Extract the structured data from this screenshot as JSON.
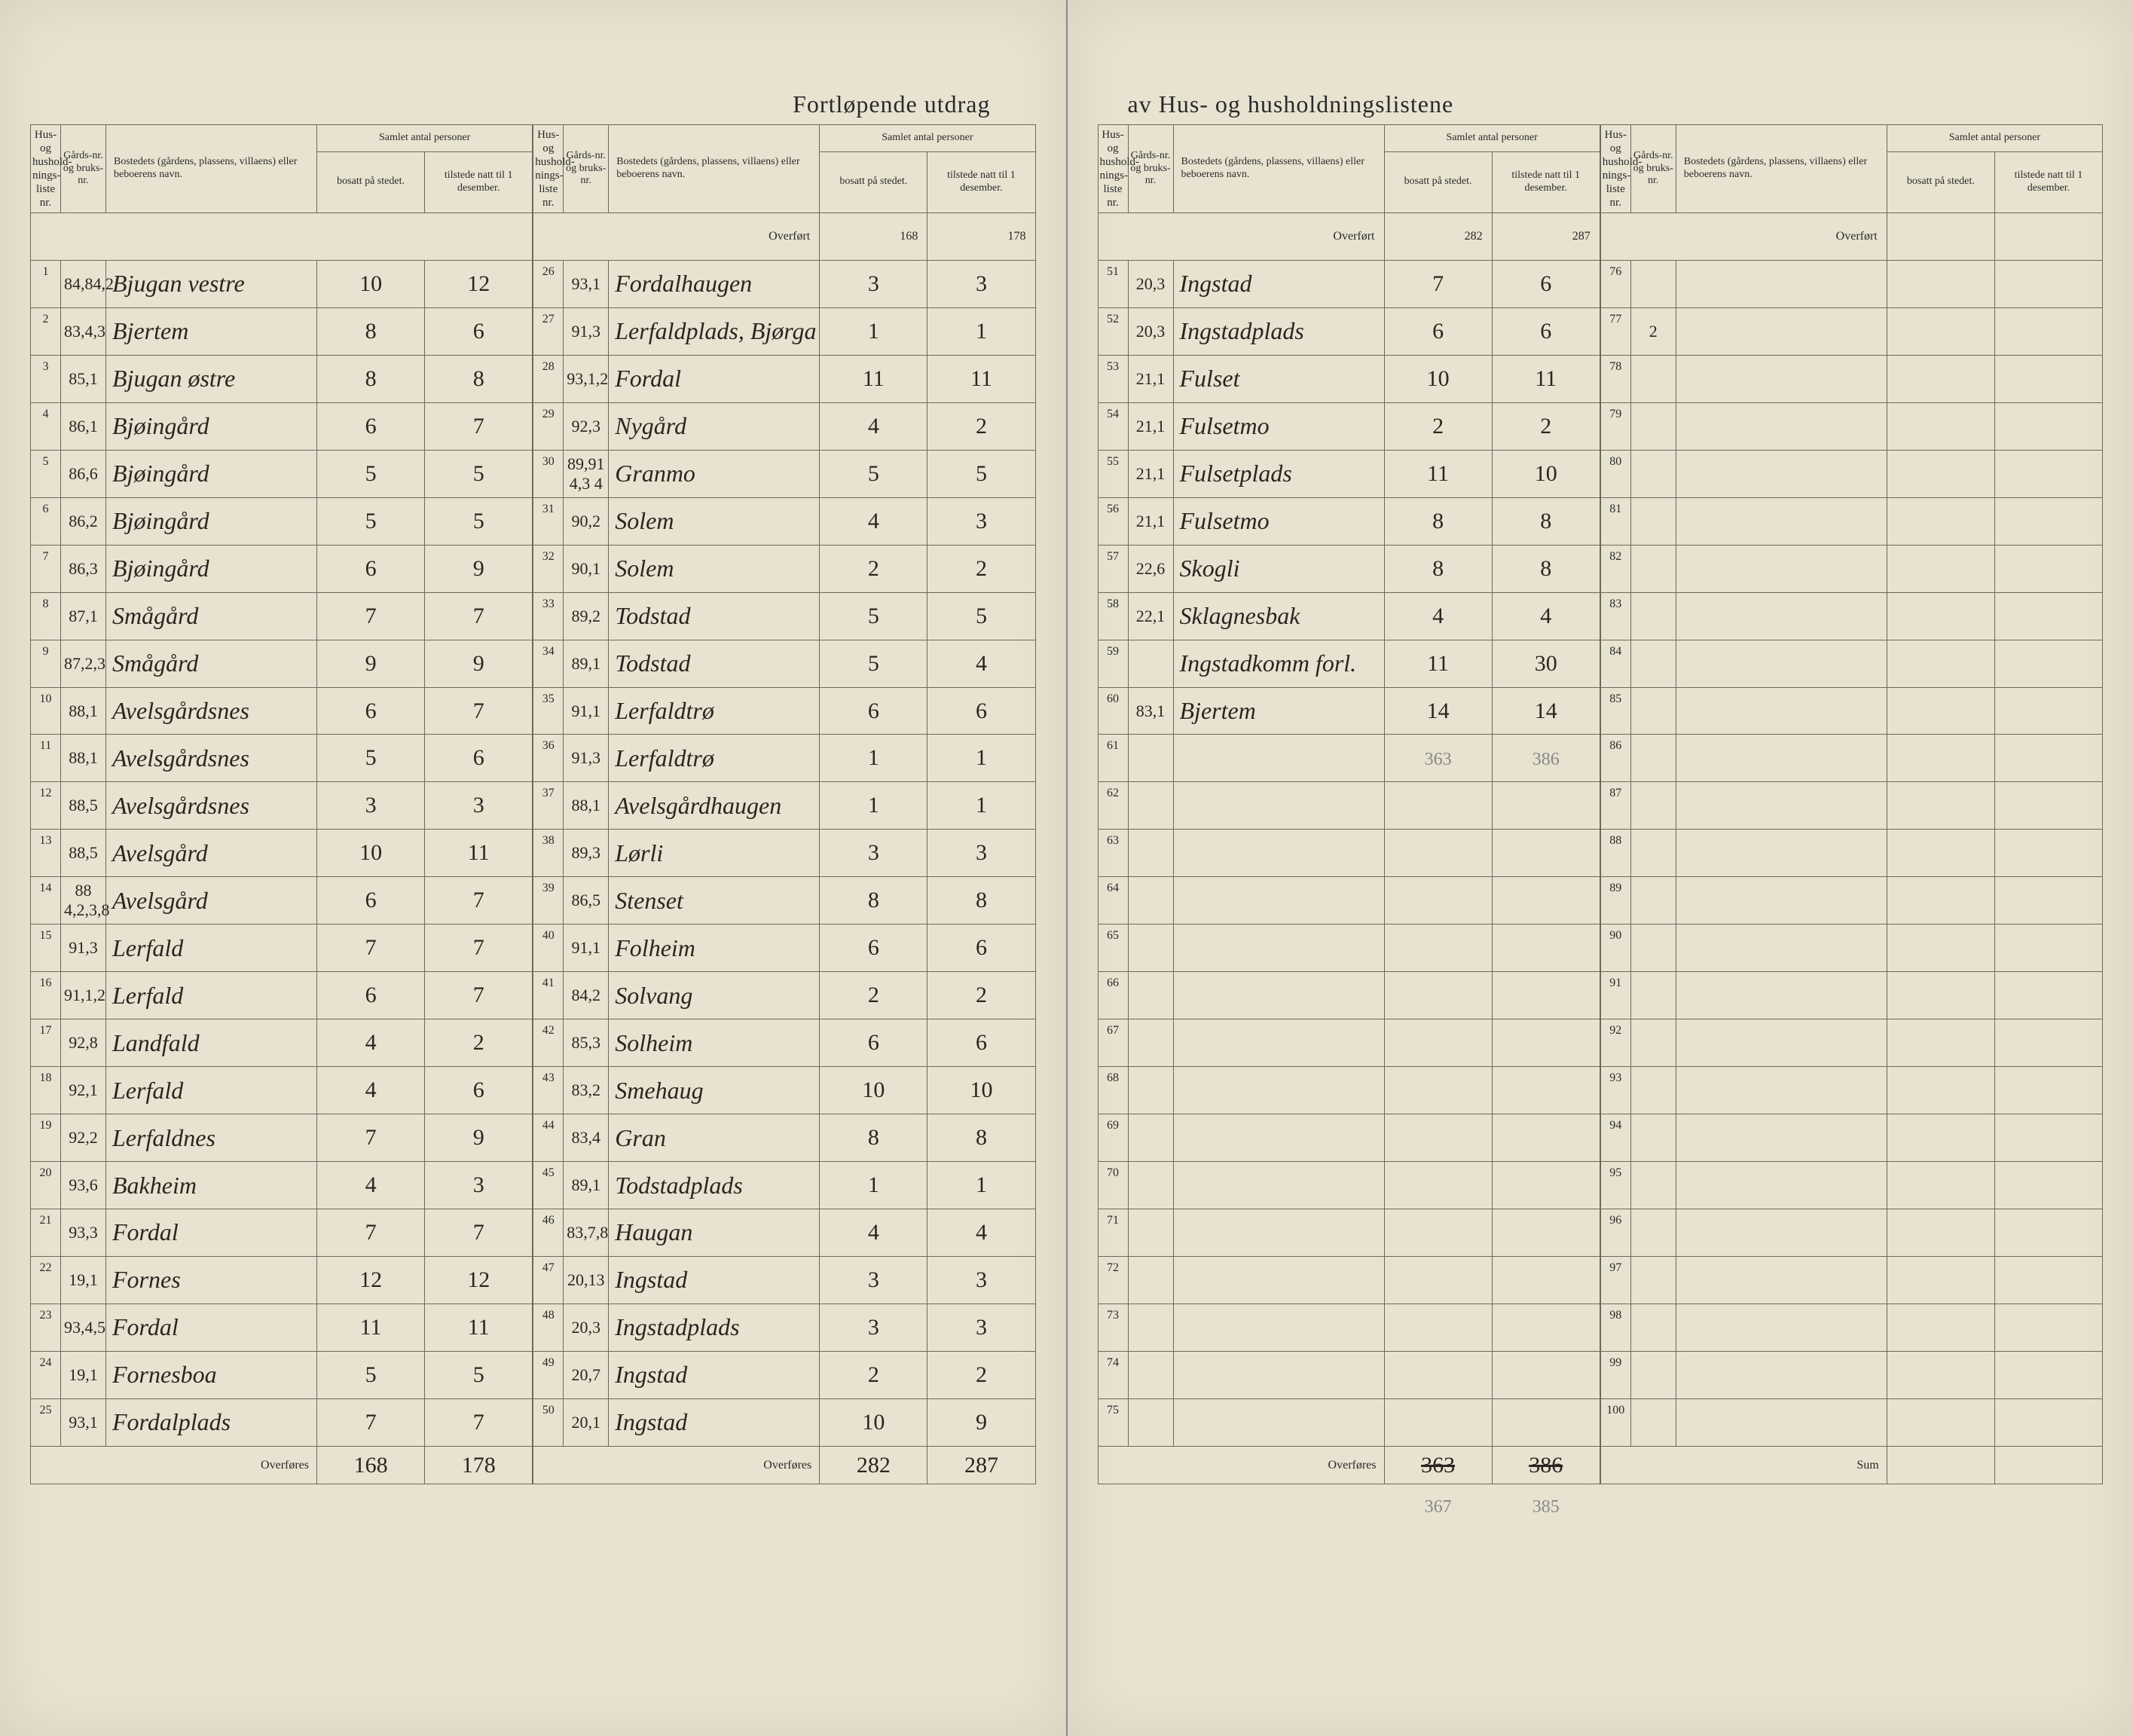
{
  "title_left": "Fortløpende utdrag",
  "title_right": "av Hus- og husholdningslistene",
  "headers": {
    "nr": "Hus- og hushold-nings-liste nr.",
    "gard": "Gårds-nr. og bruks-nr.",
    "bosted": "Bostedets (gårdens, plassens, villaens) eller beboerens navn.",
    "samlet": "Samlet antal personer",
    "bosatt": "bosatt på stedet.",
    "tilstede": "tilstede natt til 1 desember."
  },
  "overfort_label": "Overført",
  "overfores_label": "Overføres",
  "sum_label": "Sum",
  "col1": {
    "rows": [
      {
        "nr": "1",
        "gard": "84,84,2",
        "name": "Bjugan vestre",
        "b": "10",
        "t": "12"
      },
      {
        "nr": "2",
        "gard": "83,4,3",
        "name": "Bjertem",
        "b": "8",
        "t": "6"
      },
      {
        "nr": "3",
        "gard": "85,1",
        "name": "Bjugan østre",
        "b": "8",
        "t": "8"
      },
      {
        "nr": "4",
        "gard": "86,1",
        "name": "Bjøingård",
        "b": "6",
        "t": "7"
      },
      {
        "nr": "5",
        "gard": "86,6",
        "name": "Bjøingård",
        "b": "5",
        "t": "5"
      },
      {
        "nr": "6",
        "gard": "86,2",
        "name": "Bjøingård",
        "b": "5",
        "t": "5"
      },
      {
        "nr": "7",
        "gard": "86,3",
        "name": "Bjøingård",
        "b": "6",
        "t": "9"
      },
      {
        "nr": "8",
        "gard": "87,1",
        "name": "Smågård",
        "b": "7",
        "t": "7"
      },
      {
        "nr": "9",
        "gard": "87,2,3",
        "name": "Smågård",
        "b": "9",
        "t": "9"
      },
      {
        "nr": "10",
        "gard": "88,1",
        "name": "Avelsgårdsnes",
        "b": "6",
        "t": "7"
      },
      {
        "nr": "11",
        "gard": "88,1",
        "name": "Avelsgårdsnes",
        "b": "5",
        "t": "6"
      },
      {
        "nr": "12",
        "gard": "88,5",
        "name": "Avelsgårdsnes",
        "b": "3",
        "t": "3"
      },
      {
        "nr": "13",
        "gard": "88,5",
        "name": "Avelsgård",
        "b": "10",
        "t": "11"
      },
      {
        "nr": "14",
        "gard": "88 4,2,3,8",
        "name": "Avelsgård",
        "b": "6",
        "t": "7"
      },
      {
        "nr": "15",
        "gard": "91,3",
        "name": "Lerfald",
        "b": "7",
        "t": "7"
      },
      {
        "nr": "16",
        "gard": "91,1,2",
        "name": "Lerfald",
        "b": "6",
        "t": "7"
      },
      {
        "nr": "17",
        "gard": "92,8",
        "name": "Landfald",
        "b": "4",
        "t": "2"
      },
      {
        "nr": "18",
        "gard": "92,1",
        "name": "Lerfald",
        "b": "4",
        "t": "6"
      },
      {
        "nr": "19",
        "gard": "92,2",
        "name": "Lerfaldnes",
        "b": "7",
        "t": "9"
      },
      {
        "nr": "20",
        "gard": "93,6",
        "name": "Bakheim",
        "b": "4",
        "t": "3"
      },
      {
        "nr": "21",
        "gard": "93,3",
        "name": "Fordal",
        "b": "7",
        "t": "7"
      },
      {
        "nr": "22",
        "gard": "19,1",
        "name": "Fornes",
        "b": "12",
        "t": "12"
      },
      {
        "nr": "23",
        "gard": "93,4,5",
        "name": "Fordal",
        "b": "11",
        "t": "11"
      },
      {
        "nr": "24",
        "gard": "19,1",
        "name": "Fornesboa",
        "b": "5",
        "t": "5"
      },
      {
        "nr": "25",
        "gard": "93,1",
        "name": "Fordalplads",
        "b": "7",
        "t": "7"
      }
    ],
    "overfores_b": "168",
    "overfores_t": "178"
  },
  "col2": {
    "overfort_b": "168",
    "overfort_t": "178",
    "rows": [
      {
        "nr": "26",
        "gard": "93,1",
        "name": "Fordalhaugen",
        "b": "3",
        "t": "3"
      },
      {
        "nr": "27",
        "gard": "91,3",
        "name": "Lerfaldplads, Bjørga",
        "b": "1",
        "t": "1"
      },
      {
        "nr": "28",
        "gard": "93,1,2",
        "name": "Fordal",
        "b": "11",
        "t": "11"
      },
      {
        "nr": "29",
        "gard": "92,3",
        "name": "Nygård",
        "b": "4",
        "t": "2"
      },
      {
        "nr": "30",
        "gard": "89,91 4,3 4",
        "name": "Granmo",
        "b": "5",
        "t": "5"
      },
      {
        "nr": "31",
        "gard": "90,2",
        "name": "Solem",
        "b": "4",
        "t": "3"
      },
      {
        "nr": "32",
        "gard": "90,1",
        "name": "Solem",
        "b": "2",
        "t": "2"
      },
      {
        "nr": "33",
        "gard": "89,2",
        "name": "Todstad",
        "b": "5",
        "t": "5"
      },
      {
        "nr": "34",
        "gard": "89,1",
        "name": "Todstad",
        "b": "5",
        "t": "4"
      },
      {
        "nr": "35",
        "gard": "91,1",
        "name": "Lerfaldtrø",
        "b": "6",
        "t": "6"
      },
      {
        "nr": "36",
        "gard": "91,3",
        "name": "Lerfaldtrø",
        "b": "1",
        "t": "1"
      },
      {
        "nr": "37",
        "gard": "88,1",
        "name": "Avelsgårdhaugen",
        "b": "1",
        "t": "1"
      },
      {
        "nr": "38",
        "gard": "89,3",
        "name": "Lørli",
        "b": "3",
        "t": "3"
      },
      {
        "nr": "39",
        "gard": "86,5",
        "name": "Stenset",
        "b": "8",
        "t": "8"
      },
      {
        "nr": "40",
        "gard": "91,1",
        "name": "Folheim",
        "b": "6",
        "t": "6"
      },
      {
        "nr": "41",
        "gard": "84,2",
        "name": "Solvang",
        "b": "2",
        "t": "2"
      },
      {
        "nr": "42",
        "gard": "85,3",
        "name": "Solheim",
        "b": "6",
        "t": "6"
      },
      {
        "nr": "43",
        "gard": "83,2",
        "name": "Smehaug",
        "b": "10",
        "t": "10"
      },
      {
        "nr": "44",
        "gard": "83,4",
        "name": "Gran",
        "b": "8",
        "t": "8"
      },
      {
        "nr": "45",
        "gard": "89,1",
        "name": "Todstadplads",
        "b": "1",
        "t": "1"
      },
      {
        "nr": "46",
        "gard": "83,7,8",
        "name": "Haugan",
        "b": "4",
        "t": "4"
      },
      {
        "nr": "47",
        "gard": "20,13",
        "name": "Ingstad",
        "b": "3",
        "t": "3"
      },
      {
        "nr": "48",
        "gard": "20,3",
        "name": "Ingstadplads",
        "b": "3",
        "t": "3"
      },
      {
        "nr": "49",
        "gard": "20,7",
        "name": "Ingstad",
        "b": "2",
        "t": "2"
      },
      {
        "nr": "50",
        "gard": "20,1",
        "name": "Ingstad",
        "b": "10",
        "t": "9"
      }
    ],
    "overfores_b": "282",
    "overfores_t": "287"
  },
  "col3": {
    "overfort_b": "282",
    "overfort_t": "287",
    "rows": [
      {
        "nr": "51",
        "gard": "20,3",
        "name": "Ingstad",
        "b": "7",
        "t": "6"
      },
      {
        "nr": "52",
        "gard": "20,3",
        "name": "Ingstadplads",
        "b": "6",
        "t": "6"
      },
      {
        "nr": "53",
        "gard": "21,1",
        "name": "Fulset",
        "b": "10",
        "t": "11"
      },
      {
        "nr": "54",
        "gard": "21,1",
        "name": "Fulsetmo",
        "b": "2",
        "t": "2"
      },
      {
        "nr": "55",
        "gard": "21,1",
        "name": "Fulsetplads",
        "b": "11",
        "t": "10"
      },
      {
        "nr": "56",
        "gard": "21,1",
        "name": "Fulsetmo",
        "b": "8",
        "t": "8"
      },
      {
        "nr": "57",
        "gard": "22,6",
        "name": "Skogli",
        "b": "8",
        "t": "8"
      },
      {
        "nr": "58",
        "gard": "22,1",
        "name": "Sklagnesbak",
        "b": "4",
        "t": "4"
      },
      {
        "nr": "59",
        "gard": "",
        "name": "Ingstadkomm forl.",
        "b": "11",
        "t": "30"
      },
      {
        "nr": "60",
        "gard": "83,1",
        "name": "Bjertem",
        "b": "14",
        "t": "14"
      },
      {
        "nr": "61",
        "gard": "",
        "name": "",
        "b": "",
        "t": ""
      },
      {
        "nr": "62",
        "gard": "",
        "name": "",
        "b": "",
        "t": ""
      },
      {
        "nr": "63",
        "gard": "",
        "name": "",
        "b": "",
        "t": ""
      },
      {
        "nr": "64",
        "gard": "",
        "name": "",
        "b": "",
        "t": ""
      },
      {
        "nr": "65",
        "gard": "",
        "name": "",
        "b": "",
        "t": ""
      },
      {
        "nr": "66",
        "gard": "",
        "name": "",
        "b": "",
        "t": ""
      },
      {
        "nr": "67",
        "gard": "",
        "name": "",
        "b": "",
        "t": ""
      },
      {
        "nr": "68",
        "gard": "",
        "name": "",
        "b": "",
        "t": ""
      },
      {
        "nr": "69",
        "gard": "",
        "name": "",
        "b": "",
        "t": ""
      },
      {
        "nr": "70",
        "gard": "",
        "name": "",
        "b": "",
        "t": ""
      },
      {
        "nr": "71",
        "gard": "",
        "name": "",
        "b": "",
        "t": ""
      },
      {
        "nr": "72",
        "gard": "",
        "name": "",
        "b": "",
        "t": ""
      },
      {
        "nr": "73",
        "gard": "",
        "name": "",
        "b": "",
        "t": ""
      },
      {
        "nr": "74",
        "gard": "",
        "name": "",
        "b": "",
        "t": ""
      },
      {
        "nr": "75",
        "gard": "",
        "name": "",
        "b": "",
        "t": ""
      }
    ],
    "pencil_b": "363",
    "pencil_t": "386",
    "overfores_b": "363",
    "overfores_t": "386",
    "pencil2_b": "367",
    "pencil2_t": "385"
  },
  "col4": {
    "overfort_b": "",
    "overfort_t": "",
    "rows": [
      {
        "nr": "76",
        "gard": "",
        "name": "",
        "b": "",
        "t": ""
      },
      {
        "nr": "77",
        "gard": "2",
        "name": "",
        "b": "",
        "t": ""
      },
      {
        "nr": "78",
        "gard": "",
        "name": "",
        "b": "",
        "t": ""
      },
      {
        "nr": "79",
        "gard": "",
        "name": "",
        "b": "",
        "t": ""
      },
      {
        "nr": "80",
        "gard": "",
        "name": "",
        "b": "",
        "t": ""
      },
      {
        "nr": "81",
        "gard": "",
        "name": "",
        "b": "",
        "t": ""
      },
      {
        "nr": "82",
        "gard": "",
        "name": "",
        "b": "",
        "t": ""
      },
      {
        "nr": "83",
        "gard": "",
        "name": "",
        "b": "",
        "t": ""
      },
      {
        "nr": "84",
        "gard": "",
        "name": "",
        "b": "",
        "t": ""
      },
      {
        "nr": "85",
        "gard": "",
        "name": "",
        "b": "",
        "t": ""
      },
      {
        "nr": "86",
        "gard": "",
        "name": "",
        "b": "",
        "t": ""
      },
      {
        "nr": "87",
        "gard": "",
        "name": "",
        "b": "",
        "t": ""
      },
      {
        "nr": "88",
        "gard": "",
        "name": "",
        "b": "",
        "t": ""
      },
      {
        "nr": "89",
        "gard": "",
        "name": "",
        "b": "",
        "t": ""
      },
      {
        "nr": "90",
        "gard": "",
        "name": "",
        "b": "",
        "t": ""
      },
      {
        "nr": "91",
        "gard": "",
        "name": "",
        "b": "",
        "t": ""
      },
      {
        "nr": "92",
        "gard": "",
        "name": "",
        "b": "",
        "t": ""
      },
      {
        "nr": "93",
        "gard": "",
        "name": "",
        "b": "",
        "t": ""
      },
      {
        "nr": "94",
        "gard": "",
        "name": "",
        "b": "",
        "t": ""
      },
      {
        "nr": "95",
        "gard": "",
        "name": "",
        "b": "",
        "t": ""
      },
      {
        "nr": "96",
        "gard": "",
        "name": "",
        "b": "",
        "t": ""
      },
      {
        "nr": "97",
        "gard": "",
        "name": "",
        "b": "",
        "t": ""
      },
      {
        "nr": "98",
        "gard": "",
        "name": "",
        "b": "",
        "t": ""
      },
      {
        "nr": "99",
        "gard": "",
        "name": "",
        "b": "",
        "t": ""
      },
      {
        "nr": "100",
        "gard": "",
        "name": "",
        "b": "",
        "t": ""
      }
    ],
    "sum_b": "",
    "sum_t": ""
  }
}
